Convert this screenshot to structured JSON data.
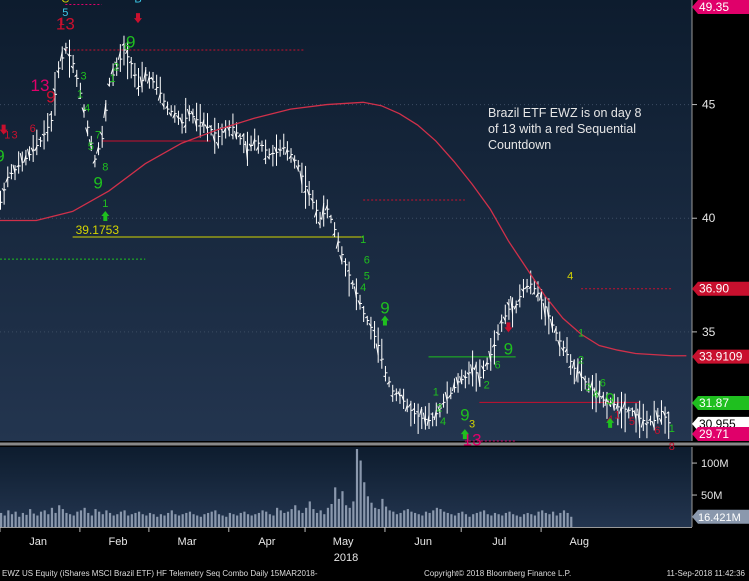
{
  "chart_data": {
    "type": "ohlc",
    "x_ticks": [
      "Jan",
      "Feb",
      "Mar",
      "Apr",
      "May",
      "Jun",
      "Jul",
      "Aug"
    ],
    "x_year_label": "2018",
    "price_axis": {
      "ylim": [
        30.2,
        49.6
      ],
      "ticks": [
        35,
        40,
        45
      ]
    },
    "price_labels": [
      {
        "value": 49.35,
        "text": "49.35",
        "color": "#e0006a"
      },
      {
        "value": 36.9,
        "text": "36.90",
        "color": "#c8102e"
      },
      {
        "value": 33.9109,
        "text": "33.9109",
        "color": "#c8102e"
      },
      {
        "value": 31.87,
        "text": "31.87",
        "color": "#1fbf1f"
      },
      {
        "value": 30.955,
        "text": "30.955",
        "color": "#ffffff"
      },
      {
        "value": 29.71,
        "text": "29.71",
        "color": "#e0006a"
      }
    ],
    "moving_average": {
      "color": "#d0304a",
      "points": [
        [
          0,
          39.9
        ],
        [
          10,
          39.9
        ],
        [
          20,
          40.3
        ],
        [
          30,
          41.2
        ],
        [
          40,
          42.4
        ],
        [
          50,
          43.3
        ],
        [
          60,
          43.9
        ],
        [
          70,
          44.4
        ],
        [
          80,
          44.8
        ],
        [
          90,
          45.0
        ],
        [
          100,
          45.1
        ],
        [
          105,
          44.95
        ],
        [
          110,
          44.6
        ],
        [
          115,
          44.1
        ],
        [
          120,
          43.4
        ],
        [
          125,
          42.5
        ],
        [
          130,
          41.5
        ],
        [
          135,
          40.4
        ],
        [
          140,
          39.0
        ],
        [
          145,
          37.8
        ],
        [
          150,
          36.6
        ],
        [
          155,
          35.6
        ],
        [
          160,
          34.9
        ],
        [
          165,
          34.4
        ],
        [
          170,
          34.2
        ],
        [
          175,
          34.05
        ],
        [
          180,
          34.0
        ],
        [
          185,
          33.95
        ],
        [
          189,
          33.95
        ]
      ]
    },
    "price_series": {
      "color": "#ffffff",
      "points": [
        [
          0,
          40.7
        ],
        [
          2,
          41.8
        ],
        [
          5,
          42.3
        ],
        [
          8,
          42.8
        ],
        [
          11,
          43.4
        ],
        [
          14,
          44.3
        ],
        [
          16,
          46.6
        ],
        [
          18,
          47.5
        ],
        [
          20,
          46.8
        ],
        [
          22,
          45.5
        ],
        [
          24,
          44.0
        ],
        [
          26,
          42.6
        ],
        [
          28,
          43.5
        ],
        [
          30,
          46.0
        ],
        [
          32,
          46.6
        ],
        [
          34,
          47.4
        ],
        [
          36,
          46.8
        ],
        [
          38,
          45.8
        ],
        [
          40,
          46.3
        ],
        [
          42,
          46.0
        ],
        [
          44,
          45.5
        ],
        [
          46,
          44.8
        ],
        [
          48,
          44.6
        ],
        [
          50,
          44.2
        ],
        [
          52,
          44.6
        ],
        [
          55,
          44.2
        ],
        [
          58,
          43.9
        ],
        [
          60,
          43.6
        ],
        [
          62,
          44.0
        ],
        [
          64,
          44.0
        ],
        [
          66,
          43.5
        ],
        [
          68,
          43.0
        ],
        [
          70,
          43.4
        ],
        [
          72,
          43.2
        ],
        [
          74,
          42.8
        ],
        [
          76,
          42.9
        ],
        [
          78,
          43.1
        ],
        [
          80,
          42.8
        ],
        [
          82,
          42.3
        ],
        [
          84,
          41.4
        ],
        [
          86,
          40.7
        ],
        [
          88,
          40.0
        ],
        [
          90,
          40.4
        ],
        [
          92,
          39.5
        ],
        [
          94,
          38.4
        ],
        [
          96,
          37.5
        ],
        [
          98,
          36.7
        ],
        [
          100,
          35.8
        ],
        [
          102,
          35.2
        ],
        [
          104,
          34.4
        ],
        [
          106,
          33.2
        ],
        [
          108,
          32.4
        ],
        [
          110,
          32.2
        ],
        [
          112,
          31.7
        ],
        [
          114,
          31.4
        ],
        [
          116,
          31.2
        ],
        [
          118,
          31.1
        ],
        [
          120,
          31.4
        ],
        [
          122,
          31.9
        ],
        [
          124,
          32.3
        ],
        [
          126,
          32.8
        ],
        [
          128,
          33.0
        ],
        [
          130,
          33.4
        ],
        [
          132,
          33.0
        ],
        [
          134,
          33.6
        ],
        [
          136,
          34.4
        ],
        [
          138,
          35.4
        ],
        [
          140,
          36.0
        ],
        [
          142,
          36.2
        ],
        [
          144,
          36.9
        ],
        [
          146,
          37.1
        ],
        [
          148,
          36.7
        ],
        [
          150,
          36.1
        ],
        [
          152,
          35.3
        ],
        [
          154,
          34.6
        ],
        [
          156,
          34.0
        ],
        [
          158,
          33.4
        ],
        [
          160,
          33.0
        ],
        [
          162,
          32.6
        ],
        [
          164,
          32.3
        ],
        [
          166,
          32.0
        ],
        [
          168,
          31.9
        ],
        [
          170,
          31.7
        ],
        [
          172,
          31.6
        ],
        [
          174,
          31.5
        ],
        [
          176,
          31.2
        ],
        [
          178,
          31.0
        ],
        [
          180,
          31.1
        ],
        [
          182,
          31.5
        ],
        [
          184,
          31.0
        ]
      ]
    },
    "reference_lines": [
      {
        "value": 47.4,
        "x0": 18,
        "x1": 84,
        "color": "#c8102e",
        "style": "dotted"
      },
      {
        "value": 43.4,
        "x0": 28,
        "x1": 58,
        "color": "#c8102e",
        "style": "solid"
      },
      {
        "value": 39.1753,
        "x0": 20,
        "x1": 100,
        "color": "#d4d400",
        "style": "solid",
        "label": "39.1753"
      },
      {
        "value": 38.2,
        "x0": 0,
        "x1": 40,
        "color": "#1fbf1f",
        "style": "dotted"
      },
      {
        "value": 40.8,
        "x0": 100,
        "x1": 128,
        "color": "#c8102e",
        "style": "dotted"
      },
      {
        "value": 33.9,
        "x0": 118,
        "x1": 142,
        "color": "#1fbf1f",
        "style": "solid"
      },
      {
        "value": 31.9,
        "x0": 132,
        "x1": 176,
        "color": "#c8102e",
        "style": "solid"
      },
      {
        "value": 36.9,
        "x0": 160,
        "x1": 185,
        "color": "#c8102e",
        "style": "dotted"
      },
      {
        "value": 30.2,
        "x0": 128,
        "x1": 142,
        "color": "#e0006a",
        "style": "dotted"
      },
      {
        "value": 49.4,
        "x0": 18,
        "x1": 28,
        "color": "#e0006a",
        "style": "dotted"
      }
    ],
    "annotations": [
      {
        "x": 36,
        "y": 47.5,
        "text": "9",
        "color": "#1fbf1f"
      },
      {
        "x": 27,
        "y": 41.3,
        "text": "9",
        "color": "#1fbf1f"
      },
      {
        "x": 0,
        "y": 42.5,
        "text": "9",
        "color": "#1fbf1f"
      },
      {
        "x": 11,
        "y": 45.6,
        "text": "13",
        "color": "#e0006a"
      },
      {
        "x": 18,
        "y": 48.3,
        "text": "13",
        "color": "#c8102e"
      },
      {
        "x": 106,
        "y": 35.8,
        "text": "9",
        "color": "#1fbf1f"
      },
      {
        "x": 140,
        "y": 34.0,
        "text": "9",
        "color": "#1fbf1f"
      },
      {
        "x": 168,
        "y": 31.8,
        "text": "9",
        "color": "#1fbf1f"
      },
      {
        "x": 128,
        "y": 31.1,
        "text": "9",
        "color": "#1fbf1f"
      },
      {
        "x": 130,
        "y": 30.0,
        "text": "13",
        "color": "#e0006a"
      },
      {
        "x": 157,
        "y": 37.3,
        "text": "4",
        "color": "#d4d400"
      },
      {
        "x": 38,
        "y": 49.5,
        "text": "B",
        "color": "#3cc8e8"
      },
      {
        "x": 18,
        "y": 49.5,
        "text": "C",
        "color": "#d4d400"
      },
      {
        "x": 18,
        "y": 48.9,
        "text": "5",
        "color": "#3cc8e8"
      },
      {
        "x": 130,
        "y": 30.8,
        "text": "3",
        "color": "#d4d400"
      },
      {
        "x": 185,
        "y": 30.6,
        "text": "1",
        "color": "#1fbf1f"
      },
      {
        "x": 185,
        "y": 29.8,
        "text": "8",
        "color": "#c8102e"
      },
      {
        "x": 181,
        "y": 30.5,
        "text": "6",
        "color": "#c8102e"
      },
      {
        "x": 170,
        "y": 31.2,
        "text": "1",
        "color": "#c8102e"
      },
      {
        "x": 160,
        "y": 34.8,
        "text": "1",
        "color": "#1fbf1f"
      },
      {
        "x": 160,
        "y": 33.6,
        "text": "2",
        "color": "#1fbf1f"
      },
      {
        "x": 100,
        "y": 38.9,
        "text": "1",
        "color": "#1fbf1f"
      },
      {
        "x": 101,
        "y": 38.0,
        "text": "6",
        "color": "#1fbf1f"
      },
      {
        "x": 101,
        "y": 37.3,
        "text": "5",
        "color": "#1fbf1f"
      },
      {
        "x": 100,
        "y": 36.8,
        "text": "4",
        "color": "#1fbf1f"
      },
      {
        "x": 29,
        "y": 40.5,
        "text": "1",
        "color": "#1fbf1f"
      },
      {
        "x": 29,
        "y": 42.1,
        "text": "8",
        "color": "#1fbf1f"
      },
      {
        "x": 27,
        "y": 43.5,
        "text": "7",
        "color": "#1fbf1f"
      },
      {
        "x": 25,
        "y": 43.0,
        "text": "5",
        "color": "#1fbf1f"
      },
      {
        "x": 24,
        "y": 44.7,
        "text": "4",
        "color": "#1fbf1f"
      },
      {
        "x": 22,
        "y": 45.3,
        "text": "1",
        "color": "#1fbf1f"
      },
      {
        "x": 23,
        "y": 46.1,
        "text": "3",
        "color": "#1fbf1f"
      },
      {
        "x": 31,
        "y": 46.0,
        "text": "1",
        "color": "#1fbf1f"
      },
      {
        "x": 32,
        "y": 46.5,
        "text": "2",
        "color": "#1fbf1f"
      },
      {
        "x": 35,
        "y": 47.4,
        "text": "6",
        "color": "#1fbf1f"
      },
      {
        "x": 2,
        "y": 43.5,
        "text": "1",
        "color": "#c8102e"
      },
      {
        "x": 4,
        "y": 43.5,
        "text": "3",
        "color": "#c8102e"
      },
      {
        "x": 9,
        "y": 43.8,
        "text": "6",
        "color": "#c8102e"
      },
      {
        "x": 14,
        "y": 45.1,
        "text": "9",
        "color": "#c8102e"
      },
      {
        "x": 17,
        "y": 48.5,
        "text": "1",
        "color": "#c8102e"
      },
      {
        "x": 120,
        "y": 32.2,
        "text": "1",
        "color": "#1fbf1f"
      },
      {
        "x": 121,
        "y": 31.5,
        "text": "2",
        "color": "#1fbf1f"
      },
      {
        "x": 122,
        "y": 30.9,
        "text": "4",
        "color": "#1fbf1f"
      },
      {
        "x": 134,
        "y": 32.5,
        "text": "2",
        "color": "#1fbf1f"
      },
      {
        "x": 137,
        "y": 33.4,
        "text": "6",
        "color": "#1fbf1f"
      },
      {
        "x": 162,
        "y": 32.4,
        "text": "3",
        "color": "#1fbf1f"
      },
      {
        "x": 164,
        "y": 32.1,
        "text": "4",
        "color": "#1fbf1f"
      },
      {
        "x": 166,
        "y": 32.6,
        "text": "6",
        "color": "#1fbf1f"
      },
      {
        "x": 174,
        "y": 30.9,
        "text": "5",
        "color": "#c8102e"
      },
      {
        "x": 168,
        "y": 31.0,
        "text": "4",
        "color": "#c8102e"
      }
    ],
    "arrows": [
      {
        "x": 38,
        "y": 48.8,
        "dir": "down",
        "color": "#c8102e"
      },
      {
        "x": 1,
        "y": 43.9,
        "dir": "down",
        "color": "#c8102e"
      },
      {
        "x": 29,
        "y": 40.1,
        "dir": "up",
        "color": "#1fbf1f"
      },
      {
        "x": 106,
        "y": 35.5,
        "dir": "up",
        "color": "#1fbf1f"
      },
      {
        "x": 128,
        "y": 30.5,
        "dir": "up",
        "color": "#1fbf1f"
      },
      {
        "x": 140,
        "y": 35.2,
        "dir": "down",
        "color": "#c8102e"
      },
      {
        "x": 168,
        "y": 31.0,
        "dir": "up",
        "color": "#1fbf1f"
      }
    ],
    "note": "Brazil ETF EWZ is on day 8 of 13 with a red Sequential Countdown",
    "volume": {
      "ticks": [
        {
          "value": 100,
          "text": "100M"
        },
        {
          "value": 50,
          "text": "50M"
        }
      ],
      "current_label": "16.421M",
      "ylim": [
        0,
        122
      ],
      "values": [
        22,
        18,
        26,
        20,
        24,
        16,
        22,
        19,
        28,
        21,
        18,
        24,
        26,
        20,
        30,
        22,
        34,
        28,
        22,
        20,
        18,
        24,
        26,
        30,
        22,
        18,
        28,
        24,
        20,
        26,
        22,
        18,
        20,
        24,
        26,
        18,
        20,
        22,
        24,
        20,
        18,
        22,
        20,
        16,
        20,
        18,
        22,
        26,
        20,
        18,
        20,
        22,
        24,
        20,
        18,
        16,
        20,
        22,
        24,
        26,
        20,
        18,
        16,
        22,
        20,
        18,
        22,
        24,
        20,
        18,
        20,
        22,
        26,
        24,
        20,
        18,
        30,
        26,
        22,
        24,
        28,
        34,
        26,
        22,
        30,
        40,
        28,
        22,
        26,
        20,
        30,
        36,
        62,
        44,
        56,
        34,
        30,
        40,
        122,
        104,
        70,
        48,
        38,
        30,
        28,
        44,
        32,
        26,
        24,
        20,
        22,
        26,
        28,
        24,
        22,
        20,
        18,
        24,
        22,
        26,
        30,
        28,
        24,
        22,
        20,
        18,
        22,
        24,
        20,
        16,
        20,
        22,
        24,
        26,
        20,
        18,
        22,
        20,
        18,
        22,
        24,
        20,
        18,
        16,
        20,
        22,
        20,
        18,
        24,
        26,
        22,
        20,
        24,
        18,
        22,
        26,
        22,
        16
      ]
    }
  },
  "footer": {
    "left": "EWZ US Equity (iShares MSCI Brazil ETF) HF Telemetry Seq Combo  Daily 15MAR2018-",
    "center": "Copyright© 2018 Bloomberg Finance L.P.",
    "right": "11-Sep-2018 11:42:36"
  }
}
